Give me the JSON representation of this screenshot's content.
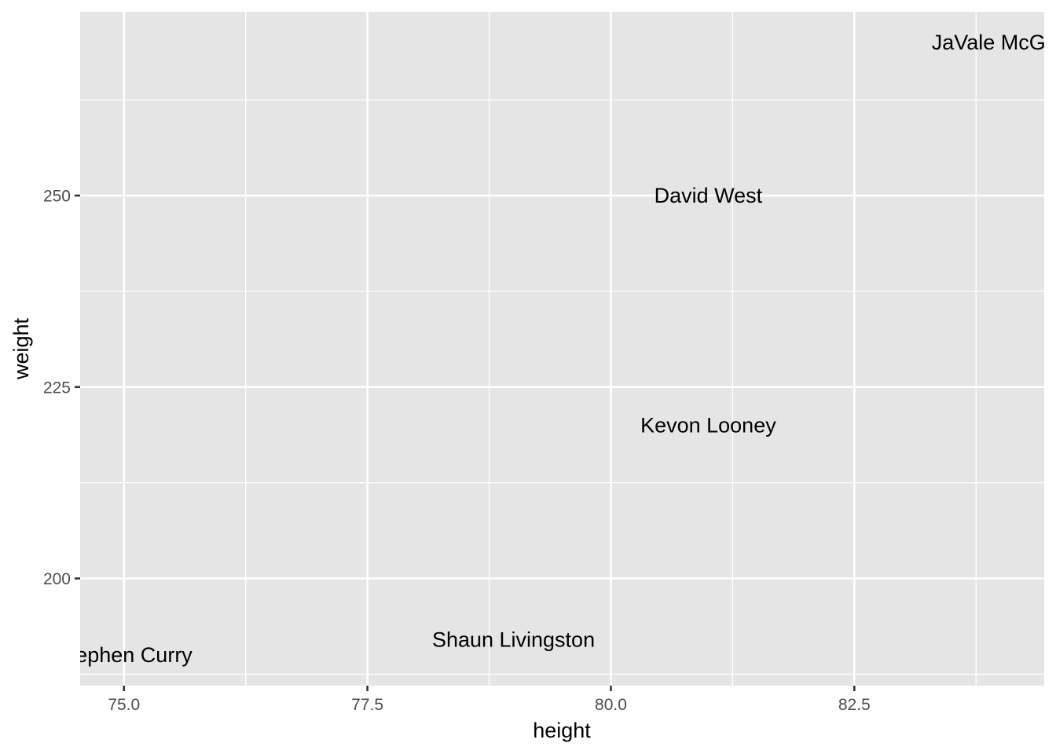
{
  "chart_data": {
    "type": "scatter",
    "title": "",
    "xlabel": "height",
    "ylabel": "weight",
    "xlim": [
      74.55,
      84.45
    ],
    "ylim": [
      186,
      274
    ],
    "x_ticks": [
      75.0,
      77.5,
      80.0,
      82.5
    ],
    "x_tick_labels": [
      "75.0",
      "77.5",
      "80.0",
      "82.5"
    ],
    "y_ticks": [
      200,
      225,
      250
    ],
    "y_tick_labels": [
      "200",
      "225",
      "250"
    ],
    "x_minor": [
      76.25,
      78.75,
      81.25,
      83.75
    ],
    "y_minor": [
      187.5,
      212.5,
      237.5,
      262.5
    ],
    "grid": true,
    "marker": "text",
    "points": [
      {
        "label": "Stephen Curry",
        "x": 75,
        "y": 190
      },
      {
        "label": "Shaun Livingston",
        "x": 79,
        "y": 192
      },
      {
        "label": "Kevon Looney",
        "x": 81,
        "y": 220
      },
      {
        "label": "David West",
        "x": 81,
        "y": 250
      },
      {
        "label": "JaVale McGee",
        "x": 84,
        "y": 270
      }
    ]
  }
}
